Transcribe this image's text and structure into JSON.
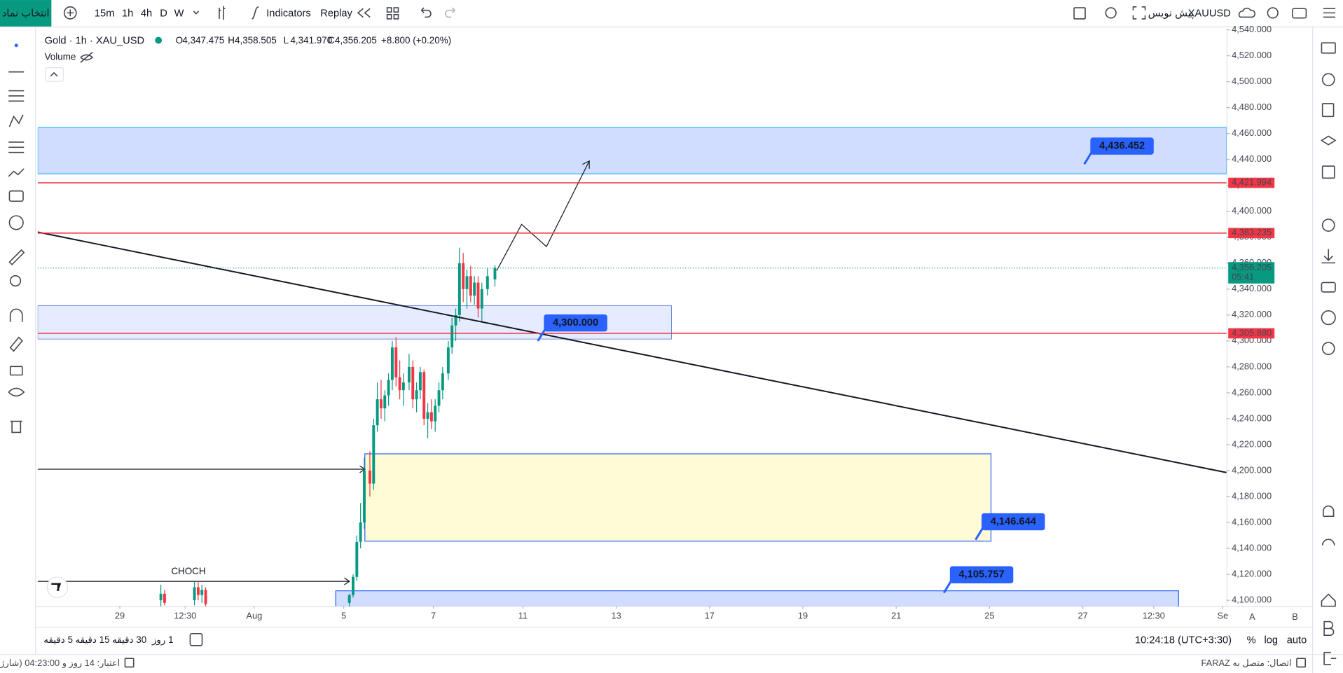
{
  "toolbar": {
    "symbol_button": "انتخاب نماد",
    "intervals": [
      "15m",
      "1h",
      "4h",
      "D",
      "W"
    ],
    "indicators": "Indicators",
    "replay": "Replay",
    "symbol": "XAUUSD",
    "symbol_note": "پیش نویس"
  },
  "legend": {
    "title": "Gold · 1h · XAU_USD",
    "ohlc": [
      {
        "key": "O",
        "value": "4,347.475"
      },
      {
        "key": "H",
        "value": "4,358.505"
      },
      {
        "key": "L",
        "value": "4,341.970"
      },
      {
        "key": "C",
        "value": "4,356.205"
      }
    ],
    "change": "+8.800 (+0.20%)",
    "volume": "Volume"
  },
  "chart_data": {
    "type": "candlestick",
    "up_color": "#089981",
    "down_color": "#f23645",
    "grid": false,
    "xlim": [
      -164,
      473
    ],
    "xticks": [
      {
        "value": -120,
        "label": "29"
      },
      {
        "value": -85,
        "label": "12:30"
      },
      {
        "value": -48,
        "label": "Aug"
      },
      {
        "value": 0,
        "label": "5"
      },
      {
        "value": 48,
        "label": "7"
      },
      {
        "value": 96,
        "label": "11"
      },
      {
        "value": 146,
        "label": "13"
      },
      {
        "value": 196,
        "label": "17"
      },
      {
        "value": 246,
        "label": "19"
      },
      {
        "value": 296,
        "label": "21"
      },
      {
        "value": 346,
        "label": "25"
      },
      {
        "value": 396,
        "label": "27"
      },
      {
        "value": 434,
        "label": "12:30"
      },
      {
        "value": 471,
        "label": "Se"
      }
    ],
    "ylim": [
      4095.4,
      4541.2
    ],
    "yticks": [
      {
        "value": 4100,
        "label": "4,100.000"
      },
      {
        "value": 4120,
        "label": "4,120.000"
      },
      {
        "value": 4140,
        "label": "4,140.000"
      },
      {
        "value": 4160,
        "label": "4,160.000"
      },
      {
        "value": 4180,
        "label": "4,180.000"
      },
      {
        "value": 4200,
        "label": "4,200.000"
      },
      {
        "value": 4220,
        "label": "4,220.000"
      },
      {
        "value": 4240,
        "label": "4,240.000"
      },
      {
        "value": 4260,
        "label": "4,260.000"
      },
      {
        "value": 4280,
        "label": "4,280.000"
      },
      {
        "value": 4300,
        "label": "4,300.000"
      },
      {
        "value": 4320,
        "label": "4,320.000"
      },
      {
        "value": 4340,
        "label": "4,340.000"
      },
      {
        "value": 4360,
        "label": "4,360.000"
      },
      {
        "value": 4380,
        "label": "4,380.000"
      },
      {
        "value": 4400,
        "label": "4,400.000"
      },
      {
        "value": 4420,
        "label": "4,420.000"
      },
      {
        "value": 4440,
        "label": "4,440.000"
      },
      {
        "value": 4460,
        "label": "4,460.000"
      },
      {
        "value": 4480,
        "label": "4,480.000"
      },
      {
        "value": 4500,
        "label": "4,500.000"
      },
      {
        "value": 4520,
        "label": "4,520.000"
      },
      {
        "value": 4540,
        "label": "4,540.000"
      }
    ],
    "candles": [
      [
        -98,
        4100,
        4112,
        4095,
        4105
      ],
      [
        -96,
        4105,
        4108,
        4096,
        4098
      ],
      [
        -80,
        4100,
        4114,
        4096,
        4110
      ],
      [
        -78,
        4110,
        4115,
        4100,
        4104
      ],
      [
        -76,
        4104,
        4112,
        4098,
        4108
      ],
      [
        -74,
        4108,
        4110,
        4095,
        4097
      ],
      [
        3,
        4098,
        4105,
        4095,
        4104
      ],
      [
        5,
        4104,
        4120,
        4102,
        4118
      ],
      [
        7,
        4118,
        4150,
        4115,
        4145
      ],
      [
        9,
        4145,
        4175,
        4140,
        4160
      ],
      [
        11,
        4160,
        4210,
        4155,
        4200
      ],
      [
        14,
        4200,
        4215,
        4180,
        4190
      ],
      [
        16,
        4190,
        4240,
        4185,
        4235
      ],
      [
        18,
        4235,
        4268,
        4230,
        4255
      ],
      [
        20,
        4255,
        4270,
        4240,
        4248
      ],
      [
        22,
        4248,
        4262,
        4238,
        4258
      ],
      [
        24,
        4258,
        4275,
        4250,
        4270
      ],
      [
        26,
        4270,
        4300,
        4262,
        4295
      ],
      [
        28,
        4295,
        4303,
        4265,
        4272
      ],
      [
        30,
        4272,
        4285,
        4255,
        4262
      ],
      [
        32,
        4262,
        4275,
        4250,
        4268
      ],
      [
        35,
        4268,
        4290,
        4262,
        4280
      ],
      [
        37,
        4280,
        4285,
        4248,
        4255
      ],
      [
        39,
        4255,
        4268,
        4245,
        4262
      ],
      [
        41,
        4262,
        4280,
        4255,
        4276
      ],
      [
        43,
        4276,
        4278,
        4235,
        4240
      ],
      [
        45,
        4240,
        4252,
        4225,
        4245
      ],
      [
        47,
        4245,
        4255,
        4232,
        4238
      ],
      [
        49,
        4238,
        4255,
        4230,
        4250
      ],
      [
        51,
        4250,
        4268,
        4245,
        4262
      ],
      [
        53,
        4262,
        4280,
        4255,
        4275
      ],
      [
        56,
        4275,
        4300,
        4270,
        4295
      ],
      [
        58,
        4295,
        4318,
        4290,
        4312
      ],
      [
        60,
        4312,
        4325,
        4300,
        4320
      ],
      [
        62,
        4320,
        4372,
        4315,
        4360
      ],
      [
        64,
        4360,
        4368,
        4330,
        4340
      ],
      [
        66,
        4340,
        4355,
        4325,
        4350
      ],
      [
        68,
        4350,
        4358,
        4330,
        4335
      ],
      [
        70,
        4335,
        4350,
        4328,
        4345
      ],
      [
        72,
        4345,
        4350,
        4318,
        4325
      ],
      [
        74,
        4325,
        4345,
        4315,
        4340
      ],
      [
        77,
        4340,
        4356,
        4335,
        4350
      ],
      [
        81,
        4347.475,
        4358.505,
        4341.97,
        4356.205
      ]
    ],
    "trendline": {
      "x": [
        -164,
        473
      ],
      "values": [
        4384,
        4198.5
      ]
    },
    "levels": [
      {
        "value": 4421.994,
        "label": "4,421.994"
      },
      {
        "value": 4383.235,
        "label": "4,383.235"
      },
      {
        "value": 4305.88,
        "label": "4,305.880"
      }
    ],
    "callouts": [
      {
        "value": 4436.452,
        "label": "4,436.452"
      },
      {
        "value": 4300,
        "label": "4,300.000"
      },
      {
        "value": 4146.644,
        "label": "4,146.644"
      },
      {
        "value": 4105.757,
        "label": "4,105.757"
      }
    ],
    "current_price": {
      "value": 4356.205,
      "label": "4,356.205",
      "countdown": "05:41"
    },
    "annotation": "CHOCH",
    "scale_letters": [
      "A",
      "B"
    ]
  },
  "bottom_bar": {
    "timeframes": [
      "5 دقیقه",
      "15 دقیقه",
      "30 دقیقه",
      "1 روز"
    ],
    "clock": "10:24:18 (UTC+3:30)",
    "axis_options": [
      "%",
      "log",
      "auto"
    ]
  },
  "status_bar": {
    "credit": "اعتبار: 14 روز و 04:23:00 (شارژ)",
    "connection": "اتصال: متصل به FARAZ"
  }
}
